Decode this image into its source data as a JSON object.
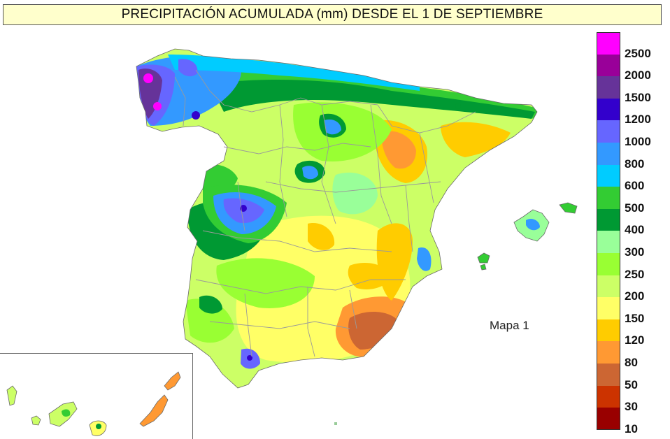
{
  "title": "PRECIPITACIÓN ACUMULADA (mm) DESDE EL 1 DE SEPTIEMBRE",
  "map_label": "Mapa 1",
  "legend": {
    "items": [
      {
        "label": "2500",
        "color": "#ff00ff"
      },
      {
        "label": "2000",
        "color": "#990099"
      },
      {
        "label": "1500",
        "color": "#663399"
      },
      {
        "label": "1200",
        "color": "#3300cc"
      },
      {
        "label": "1000",
        "color": "#6666ff"
      },
      {
        "label": "800",
        "color": "#3399ff"
      },
      {
        "label": "600",
        "color": "#00ccff"
      },
      {
        "label": "500",
        "color": "#33cc33"
      },
      {
        "label": "400",
        "color": "#009933"
      },
      {
        "label": "300",
        "color": "#99ff99"
      },
      {
        "label": "250",
        "color": "#99ff33"
      },
      {
        "label": "200",
        "color": "#ccff66"
      },
      {
        "label": "150",
        "color": "#ffff66"
      },
      {
        "label": "120",
        "color": "#ffcc00"
      },
      {
        "label": "80",
        "color": "#ff9933"
      },
      {
        "label": "50",
        "color": "#cc6633"
      },
      {
        "label": "30",
        "color": "#cc3300"
      },
      {
        "label": "10",
        "color": "#990000"
      }
    ]
  },
  "colors": {
    "background": "#ffffff",
    "title_background": "#ffffcc",
    "province_borders": "#9a9a9a"
  }
}
